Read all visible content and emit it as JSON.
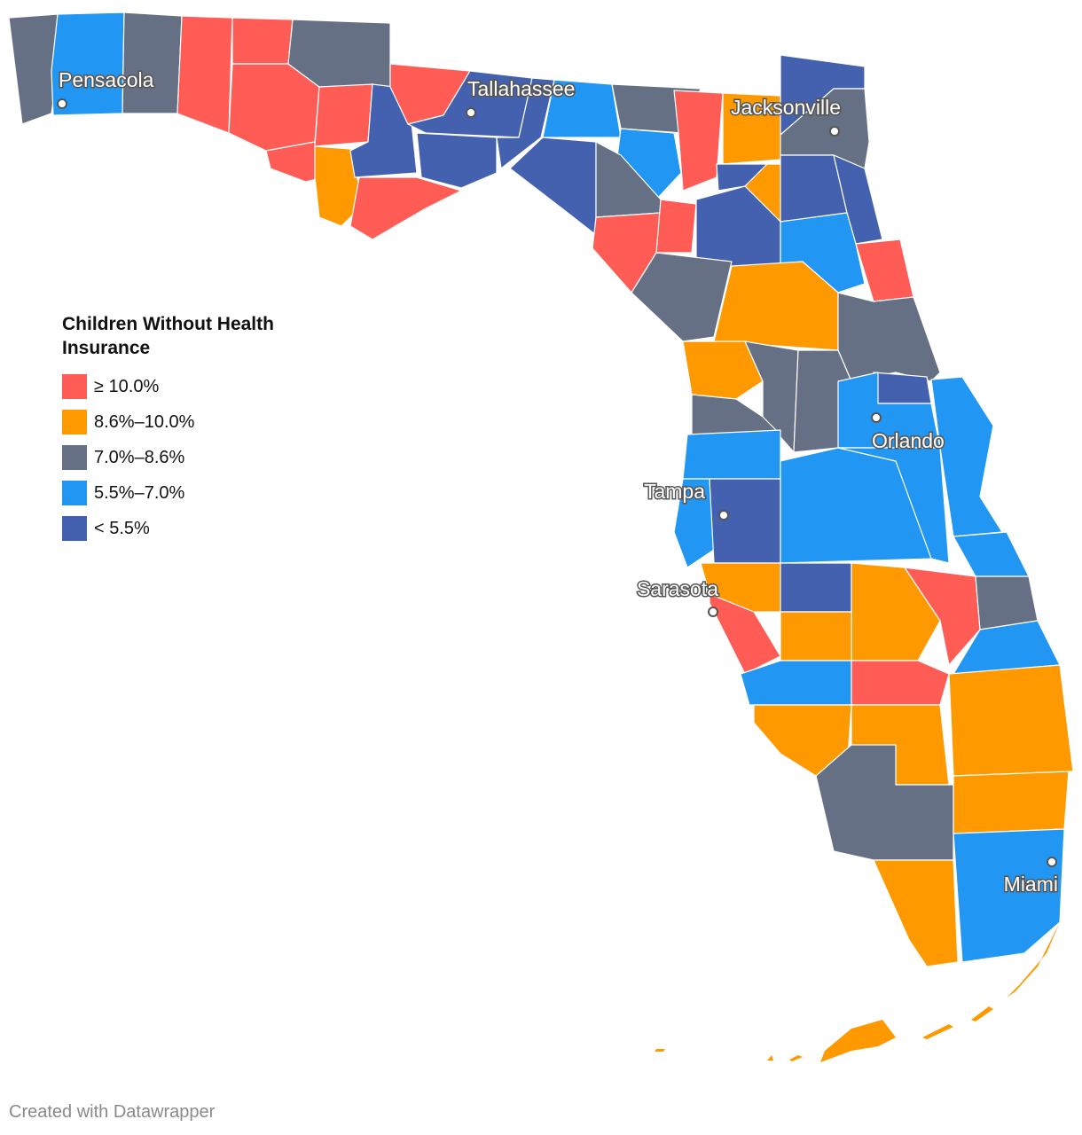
{
  "legend": {
    "title": "Children Without Health Insurance",
    "bins": [
      {
        "label": "≥ 10.0%",
        "color": "#ff5c55"
      },
      {
        "label": "8.6%–10.0%",
        "color": "#ff9900"
      },
      {
        "label": "7.0%–8.6%",
        "color": "#667085"
      },
      {
        "label": "5.5%–7.0%",
        "color": "#2196f3"
      },
      {
        "label": "< 5.5%",
        "color": "#4361ae"
      }
    ]
  },
  "cities": [
    "Pensacola",
    "Tallahassee",
    "Jacksonville",
    "Orlando",
    "Tampa",
    "Sarasota",
    "Miami"
  ],
  "footer": {
    "credit": "Created with Datawrapper"
  },
  "map_style": {
    "county_border": "#ffffff",
    "city_label_halo": "#555555",
    "background": "#ffffff"
  }
}
